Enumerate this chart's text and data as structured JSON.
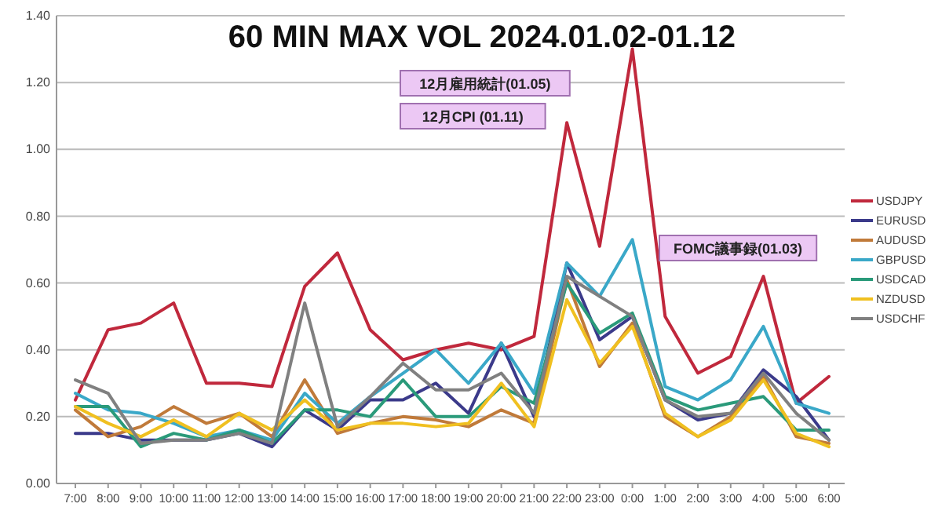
{
  "chart_data": {
    "type": "line",
    "title": "60 MIN MAX VOL 2024.01.02-01.12",
    "categories": [
      "7:00",
      "8:00",
      "9:00",
      "10:00",
      "11:00",
      "12:00",
      "13:00",
      "14:00",
      "15:00",
      "16:00",
      "17:00",
      "18:00",
      "19:00",
      "20:00",
      "21:00",
      "22:00",
      "23:00",
      "0:00",
      "1:00",
      "2:00",
      "3:00",
      "4:00",
      "5:00",
      "6:00"
    ],
    "series": [
      {
        "name": "USDJPY",
        "color": "#c0283c",
        "values": [
          0.25,
          0.46,
          0.48,
          0.54,
          0.3,
          0.3,
          0.29,
          0.59,
          0.69,
          0.46,
          0.37,
          0.4,
          0.42,
          0.4,
          0.44,
          1.08,
          0.71,
          1.3,
          0.5,
          0.33,
          0.38,
          0.62,
          0.24,
          0.32
        ]
      },
      {
        "name": "EURUSD",
        "color": "#3b3a8a",
        "values": [
          0.15,
          0.15,
          0.13,
          0.13,
          0.13,
          0.15,
          0.11,
          0.22,
          0.16,
          0.25,
          0.25,
          0.3,
          0.21,
          0.42,
          0.2,
          0.66,
          0.43,
          0.5,
          0.25,
          0.19,
          0.21,
          0.34,
          0.26,
          0.13
        ]
      },
      {
        "name": "AUDUSD",
        "color": "#c07a3a",
        "values": [
          0.22,
          0.14,
          0.17,
          0.23,
          0.18,
          0.21,
          0.14,
          0.31,
          0.15,
          0.18,
          0.2,
          0.19,
          0.17,
          0.22,
          0.18,
          0.61,
          0.35,
          0.48,
          0.2,
          0.14,
          0.2,
          0.32,
          0.14,
          0.12
        ]
      },
      {
        "name": "GBPUSD",
        "color": "#3aa8c8",
        "values": [
          0.27,
          0.22,
          0.21,
          0.18,
          0.14,
          0.16,
          0.13,
          0.27,
          0.18,
          0.26,
          0.33,
          0.4,
          0.3,
          0.42,
          0.27,
          0.66,
          0.56,
          0.73,
          0.29,
          0.25,
          0.31,
          0.47,
          0.24,
          0.21
        ]
      },
      {
        "name": "USDCAD",
        "color": "#2a9a7a",
        "values": [
          0.23,
          0.23,
          0.11,
          0.15,
          0.13,
          0.16,
          0.12,
          0.22,
          0.22,
          0.2,
          0.31,
          0.2,
          0.2,
          0.29,
          0.24,
          0.6,
          0.45,
          0.51,
          0.26,
          0.22,
          0.24,
          0.26,
          0.16,
          0.16
        ]
      },
      {
        "name": "NZDUSD",
        "color": "#f0c020",
        "values": [
          0.23,
          0.18,
          0.14,
          0.19,
          0.14,
          0.21,
          0.16,
          0.25,
          0.16,
          0.18,
          0.18,
          0.17,
          0.18,
          0.3,
          0.17,
          0.55,
          0.36,
          0.47,
          0.21,
          0.14,
          0.19,
          0.31,
          0.15,
          0.11
        ]
      },
      {
        "name": "USDCHF",
        "color": "#808080",
        "values": [
          0.31,
          0.27,
          0.12,
          0.13,
          0.13,
          0.15,
          0.12,
          0.54,
          0.17,
          0.26,
          0.36,
          0.28,
          0.28,
          0.33,
          0.21,
          0.62,
          0.56,
          0.5,
          0.25,
          0.2,
          0.21,
          0.33,
          0.21,
          0.13
        ]
      }
    ],
    "ylim": [
      0,
      1.4
    ],
    "yticks": [
      {
        "value": 0,
        "label": "0.00"
      },
      {
        "value": 0.2,
        "label": "0.20"
      },
      {
        "value": 0.4,
        "label": "0.40"
      },
      {
        "value": 0.6,
        "label": "0.60"
      },
      {
        "value": 0.8,
        "label": "0.80"
      },
      {
        "value": 1.0,
        "label": "1.00"
      },
      {
        "value": 1.2,
        "label": "1.20"
      },
      {
        "value": 1.4,
        "label": "1.40"
      }
    ],
    "grid": "y",
    "legend": "right",
    "marker": "none",
    "line_style": "solid",
    "annotations": [
      "12月雇用統計(01.05)",
      "12月CPI (01.11)",
      "FOMC議事録(01.03)"
    ]
  }
}
